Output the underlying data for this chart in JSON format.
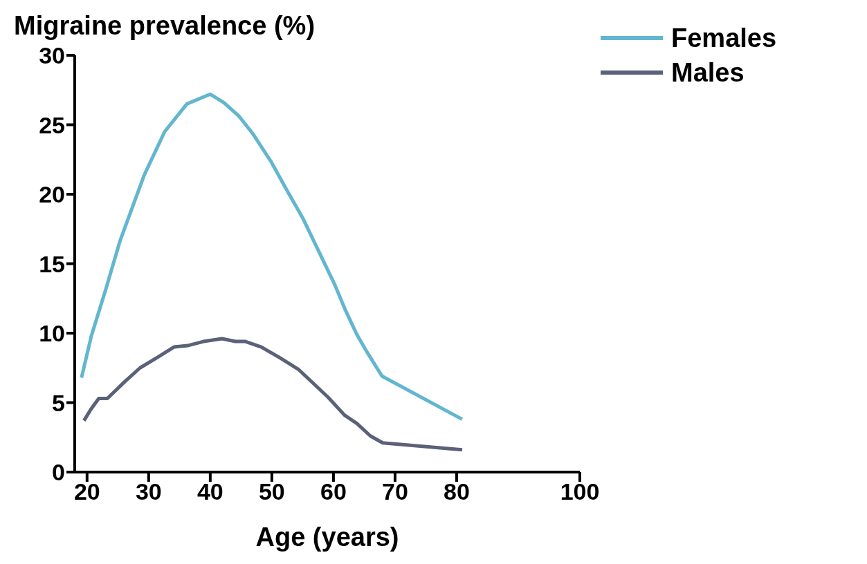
{
  "chart_data": {
    "type": "line",
    "ylabel": "Migraine prevalence (%)",
    "xlabel": "Age (years)",
    "xlim": [
      18,
      100
    ],
    "xticks": [
      20,
      30,
      40,
      50,
      60,
      70,
      80,
      100
    ],
    "ylim": [
      0,
      30
    ],
    "yticks": [
      0,
      5,
      10,
      15,
      20,
      25,
      30
    ],
    "grid": false,
    "legend": "top right",
    "marker": "none",
    "line_style": "solid",
    "series": [
      {
        "name": "Females",
        "color": "#62b6cf",
        "x": [
          19.1,
          20.7,
          23.0,
          25.4,
          29.3,
          32.6,
          36.2,
          40.0,
          42.2,
          44.7,
          47.0,
          49.8,
          52.3,
          55.0,
          60.2,
          61.9,
          63.8,
          65.5,
          67.9,
          80.9
        ],
        "values": [
          6.8,
          9.8,
          13.1,
          16.7,
          21.4,
          24.5,
          26.5,
          27.2,
          26.6,
          25.6,
          24.3,
          22.4,
          20.4,
          18.3,
          13.5,
          11.7,
          9.9,
          8.6,
          6.9,
          3.8
        ]
      },
      {
        "name": "Males",
        "color": "#5a6178",
        "x": [
          19.5,
          20.6,
          21.9,
          23.3,
          26.1,
          28.6,
          31.6,
          34.1,
          36.3,
          38.9,
          41.9,
          44.1,
          45.7,
          48.3,
          51.4,
          54.3,
          59.1,
          61.8,
          63.8,
          66.0,
          68.0,
          80.9
        ],
        "values": [
          3.7,
          4.5,
          5.3,
          5.3,
          6.5,
          7.5,
          8.3,
          9.0,
          9.1,
          9.4,
          9.6,
          9.4,
          9.4,
          9.0,
          8.2,
          7.4,
          5.4,
          4.1,
          3.5,
          2.6,
          2.1,
          1.6
        ]
      }
    ]
  }
}
